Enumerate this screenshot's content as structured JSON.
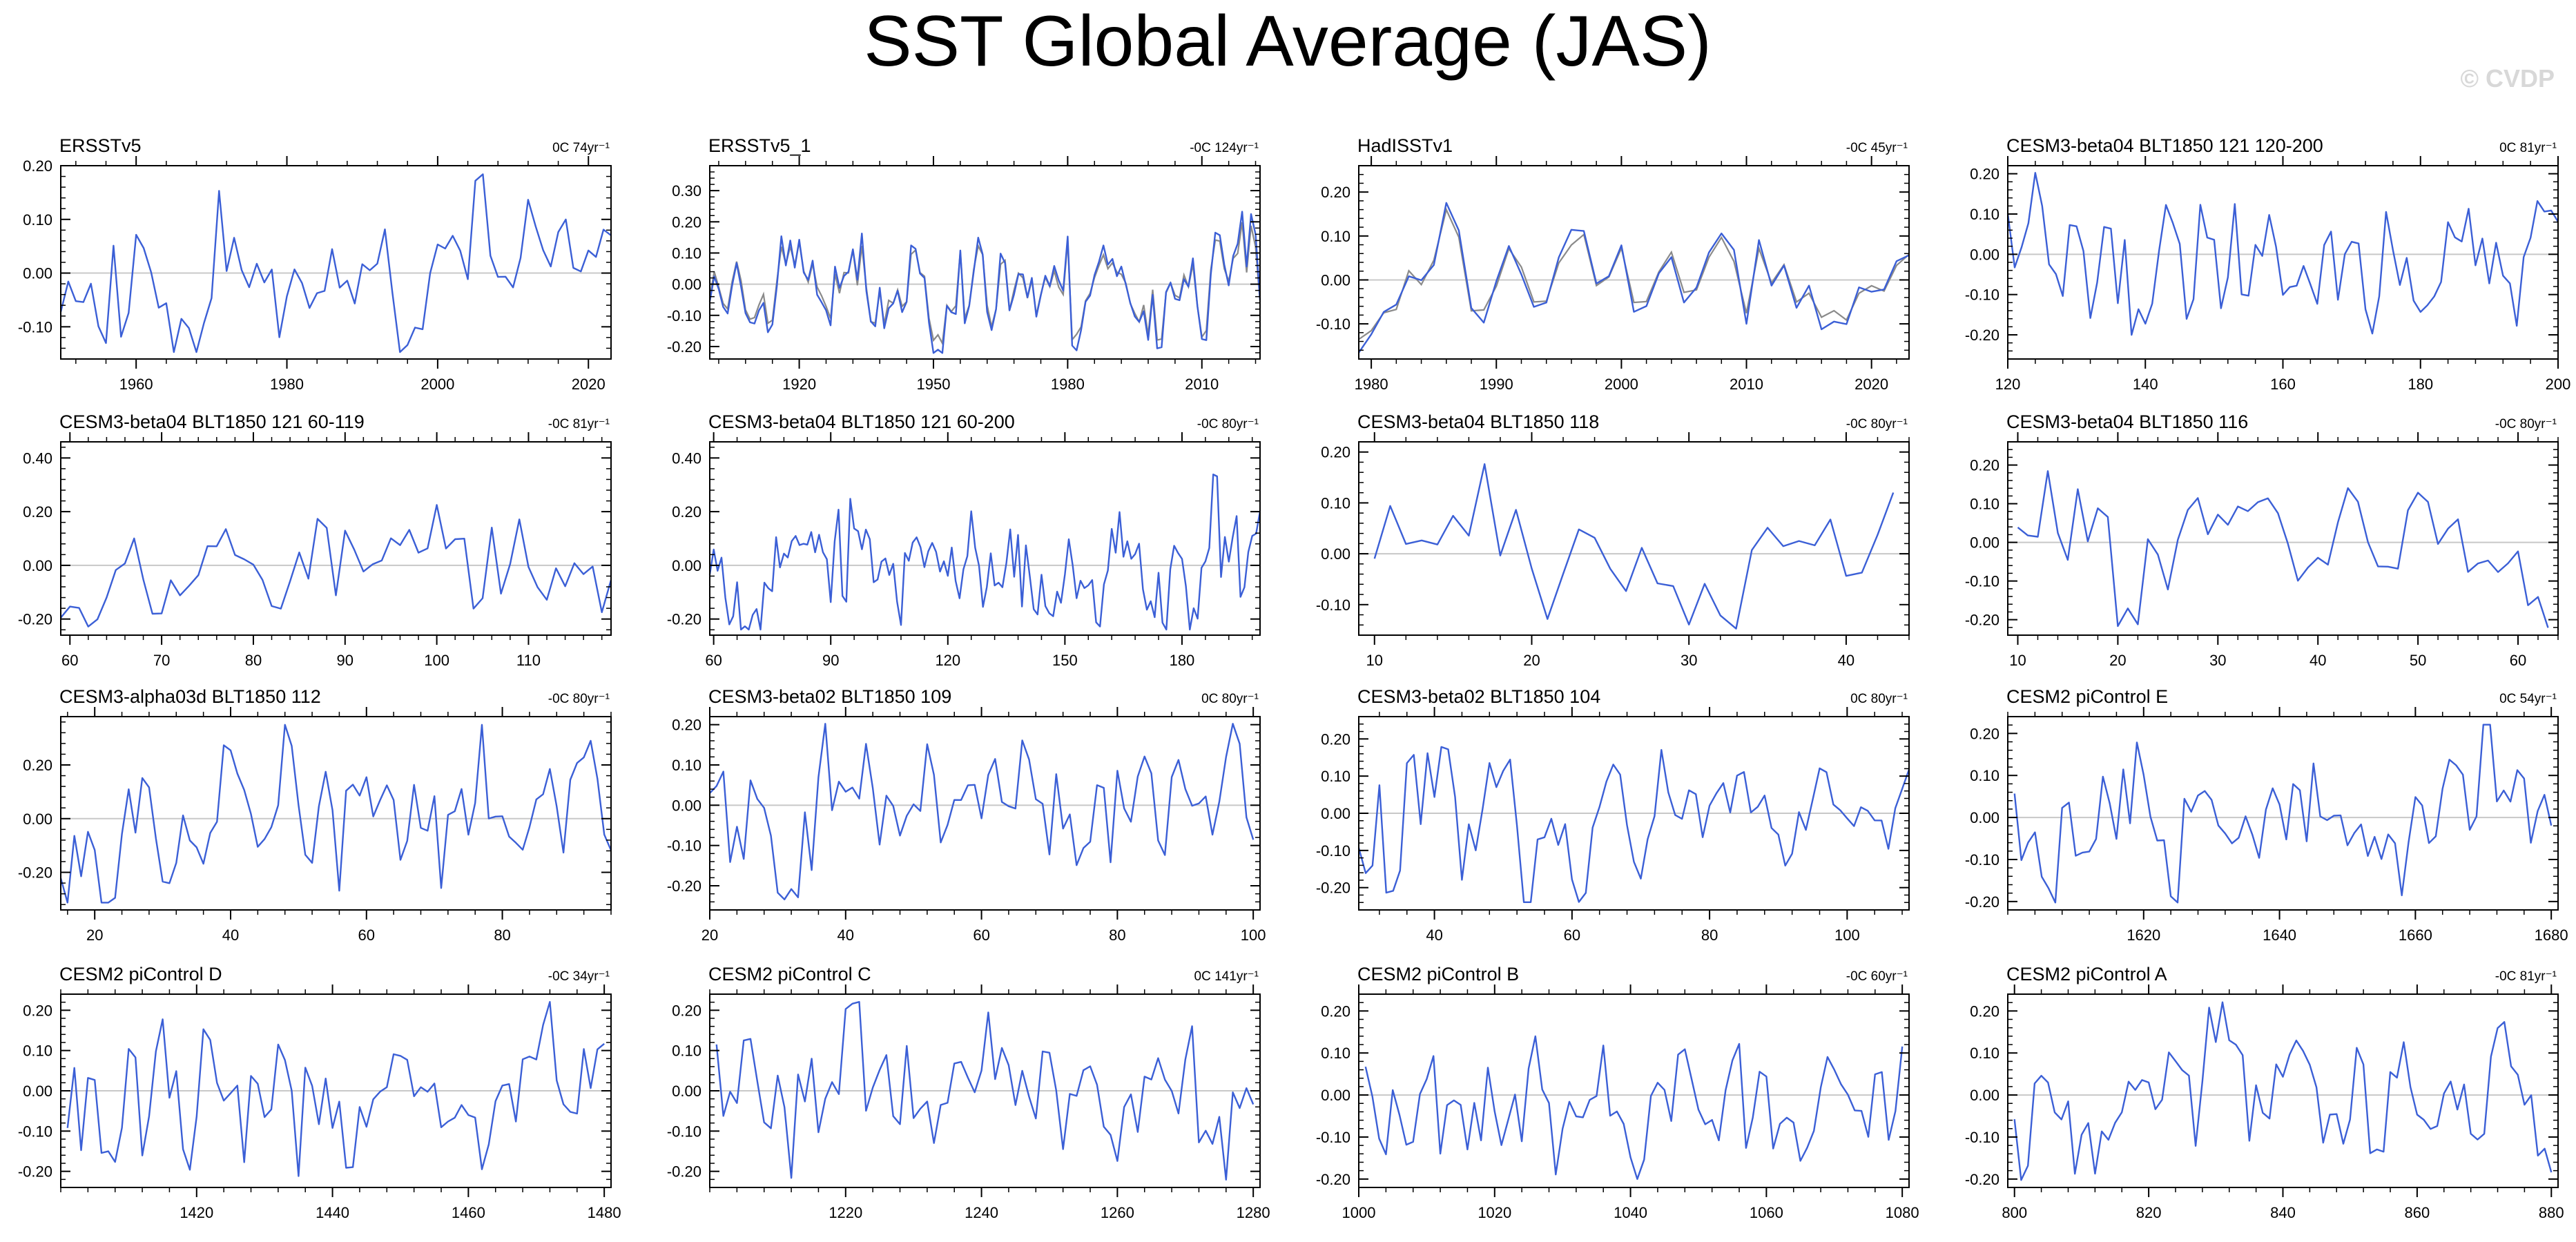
{
  "title": "SST Global Average (JAS)",
  "watermark": "© CVDP",
  "colors": {
    "series": "#3b5fd6",
    "observed": "#8a8a8a",
    "zero_line": "#c8c8c8",
    "frame": "#000000"
  },
  "chart_data": [
    {
      "type": "line",
      "title": "ERSSTv5",
      "trend": "0C 74yr⁻¹",
      "xlim": [
        1950,
        2023
      ],
      "ylim": [
        -0.16,
        0.2
      ],
      "xticks": [
        1960,
        1980,
        2000,
        2020
      ],
      "yticks": [
        0.2,
        0.1,
        0.0,
        -0.1
      ],
      "x_start": 1950,
      "seed": 11,
      "n": 74
    },
    {
      "type": "line",
      "title": "ERSSTv5_1",
      "trend": "-0C 124yr⁻¹",
      "xlim": [
        1900,
        2023
      ],
      "ylim": [
        -0.24,
        0.38
      ],
      "xticks": [
        1920,
        1950,
        1980,
        2010
      ],
      "yticks": [
        0.3,
        0.2,
        0.1,
        0.0,
        -0.1,
        -0.2
      ],
      "x_start": 1900,
      "seed": 23,
      "n": 124,
      "overlay": true
    },
    {
      "type": "line",
      "title": "HadISSTv1",
      "trend": "-0C 45yr⁻¹",
      "xlim": [
        1979,
        2023
      ],
      "ylim": [
        -0.18,
        0.26
      ],
      "xticks": [
        1980,
        1990,
        2000,
        2010,
        2020
      ],
      "yticks": [
        0.2,
        0.1,
        0.0,
        -0.1
      ],
      "x_start": 1979,
      "seed": 37,
      "n": 45,
      "overlay": true
    },
    {
      "type": "line",
      "title": "CESM3-beta04 BLT1850 121 120-200",
      "trend": "0C 81yr⁻¹",
      "xlim": [
        120,
        200
      ],
      "ylim": [
        -0.26,
        0.22
      ],
      "xticks": [
        120,
        140,
        160,
        180,
        200
      ],
      "yticks": [
        0.2,
        0.1,
        0.0,
        -0.1,
        -0.2
      ],
      "x_start": 120,
      "seed": 41,
      "n": 81
    },
    {
      "type": "line",
      "title": "CESM3-beta04 BLT1850 121 60-119",
      "trend": "-0C 81yr⁻¹",
      "xlim": [
        59,
        119
      ],
      "ylim": [
        -0.26,
        0.46
      ],
      "xticks": [
        60,
        70,
        80,
        90,
        100,
        110
      ],
      "yticks": [
        0.4,
        0.2,
        0.0,
        -0.2
      ],
      "x_start": 59,
      "seed": 53,
      "n": 61
    },
    {
      "type": "line",
      "title": "CESM3-beta04 BLT1850 121 60-200",
      "trend": "-0C 80yr⁻¹",
      "xlim": [
        59,
        200
      ],
      "ylim": [
        -0.26,
        0.46
      ],
      "xticks": [
        60,
        90,
        120,
        150,
        180
      ],
      "yticks": [
        0.4,
        0.2,
        0.0,
        -0.2
      ],
      "x_start": 59,
      "seed": 67,
      "n": 142
    },
    {
      "type": "line",
      "title": "CESM3-beta04 BLT1850 118",
      "trend": "-0C 80yr⁻¹",
      "xlim": [
        9,
        44
      ],
      "ylim": [
        -0.16,
        0.22
      ],
      "xticks": [
        10,
        20,
        30,
        40
      ],
      "yticks": [
        0.2,
        0.1,
        0.0,
        -0.1
      ],
      "x_start": 10,
      "seed": 71,
      "n": 34
    },
    {
      "type": "line",
      "title": "CESM3-beta04 BLT1850 116",
      "trend": "-0C 80yr⁻¹",
      "xlim": [
        9,
        64
      ],
      "ylim": [
        -0.24,
        0.26
      ],
      "xticks": [
        10,
        20,
        30,
        40,
        50,
        60
      ],
      "yticks": [
        0.2,
        0.1,
        0.0,
        -0.1,
        -0.2
      ],
      "x_start": 10,
      "seed": 83,
      "n": 54
    },
    {
      "type": "line",
      "title": "CESM3-alpha03d BLT1850 112",
      "trend": "-0C 80yr⁻¹",
      "xlim": [
        15,
        96
      ],
      "ylim": [
        -0.34,
        0.38
      ],
      "xticks": [
        20,
        40,
        60,
        80
      ],
      "yticks": [
        0.2,
        0.0,
        -0.2
      ],
      "x_start": 15,
      "seed": 97,
      "n": 82
    },
    {
      "type": "line",
      "title": "CESM3-beta02 BLT1850 109",
      "trend": "0C 80yr⁻¹",
      "xlim": [
        20,
        101
      ],
      "ylim": [
        -0.26,
        0.22
      ],
      "xticks": [
        20,
        40,
        60,
        80,
        100
      ],
      "yticks": [
        0.2,
        0.1,
        0.0,
        -0.1,
        -0.2
      ],
      "x_start": 20,
      "seed": 101,
      "n": 81
    },
    {
      "type": "line",
      "title": "CESM3-beta02 BLT1850 104",
      "trend": "0C 80yr⁻¹",
      "xlim": [
        29,
        109
      ],
      "ylim": [
        -0.26,
        0.26
      ],
      "xticks": [
        40,
        60,
        80,
        100
      ],
      "yticks": [
        0.2,
        0.1,
        0.0,
        -0.1,
        -0.2
      ],
      "x_start": 29,
      "seed": 113,
      "n": 81
    },
    {
      "type": "line",
      "title": "CESM2 piControl E",
      "trend": "0C 54yr⁻¹",
      "xlim": [
        1600,
        1681
      ],
      "ylim": [
        -0.22,
        0.24
      ],
      "xticks": [
        1620,
        1640,
        1660,
        1680
      ],
      "yticks": [
        0.2,
        0.1,
        0.0,
        -0.1,
        -0.2
      ],
      "x_start": 1601,
      "seed": 127,
      "n": 80
    },
    {
      "type": "line",
      "title": "CESM2 piControl D",
      "trend": "-0C 34yr⁻¹",
      "xlim": [
        1400,
        1481
      ],
      "ylim": [
        -0.24,
        0.24
      ],
      "xticks": [
        1420,
        1440,
        1460,
        1480
      ],
      "yticks": [
        0.2,
        0.1,
        0.0,
        -0.1,
        -0.2
      ],
      "x_start": 1401,
      "seed": 131,
      "n": 80
    },
    {
      "type": "line",
      "title": "CESM2 piControl C",
      "trend": "0C 141yr⁻¹",
      "xlim": [
        1200,
        1281
      ],
      "ylim": [
        -0.24,
        0.24
      ],
      "xticks": [
        1220,
        1240,
        1260,
        1280
      ],
      "yticks": [
        0.2,
        0.1,
        0.0,
        -0.1,
        -0.2
      ],
      "x_start": 1201,
      "seed": 139,
      "n": 80
    },
    {
      "type": "line",
      "title": "CESM2 piControl B",
      "trend": "-0C 60yr⁻¹",
      "xlim": [
        1000,
        1081
      ],
      "ylim": [
        -0.22,
        0.24
      ],
      "xticks": [
        1000,
        1020,
        1040,
        1060,
        1080
      ],
      "yticks": [
        0.2,
        0.1,
        0.0,
        -0.1,
        -0.2
      ],
      "x_start": 1001,
      "seed": 149,
      "n": 80
    },
    {
      "type": "line",
      "title": "CESM2 piControl A",
      "trend": "-0C 81yr⁻¹",
      "xlim": [
        799,
        881
      ],
      "ylim": [
        -0.22,
        0.24
      ],
      "xticks": [
        800,
        820,
        840,
        860,
        880
      ],
      "yticks": [
        0.2,
        0.1,
        0.0,
        -0.1,
        -0.2
      ],
      "x_start": 800,
      "seed": 157,
      "n": 81
    }
  ]
}
